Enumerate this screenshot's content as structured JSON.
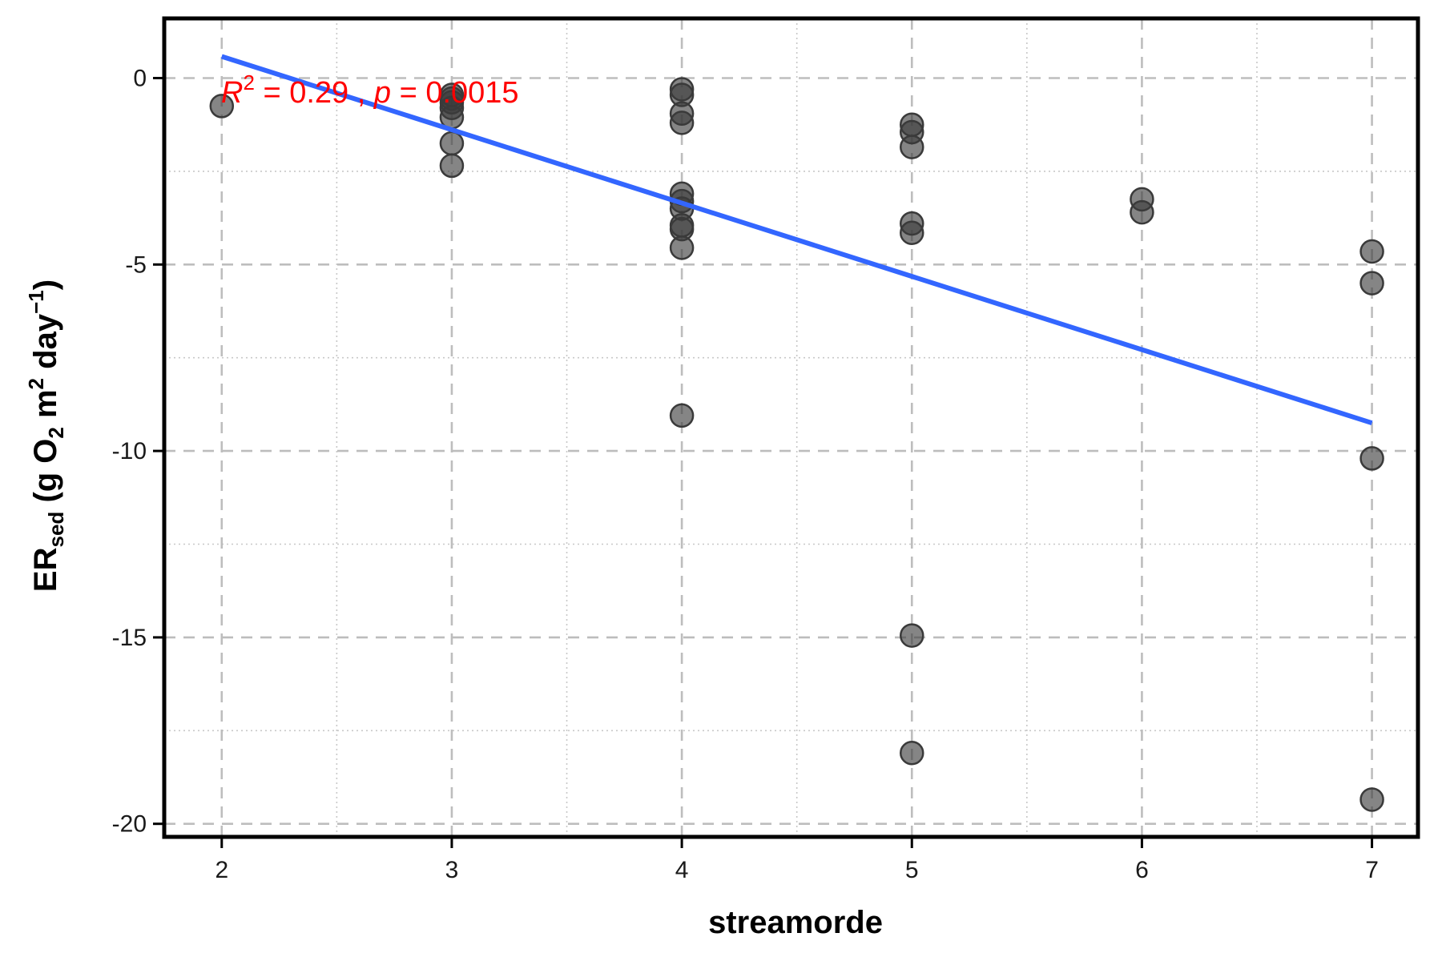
{
  "chart_data": {
    "type": "scatter",
    "title": "",
    "xlabel": "streamorde",
    "ylabel": {
      "main": "ER",
      "sub": "sed",
      "unit_prefix": " (g O",
      "unit_o2_sub": "2",
      "unit_m": " m",
      "unit_m_sup": "2",
      "unit_day": " day",
      "unit_day_sup": "−1",
      "unit_close": ")"
    },
    "xlim": [
      1.75,
      7.2
    ],
    "ylim": [
      -20.35,
      1.6
    ],
    "x_major_ticks": [
      2,
      3,
      4,
      5,
      6,
      7
    ],
    "x_minor_ticks": [
      2.5,
      3.5,
      4.5,
      5.5,
      6.5
    ],
    "y_major_ticks": [
      0,
      -5,
      -10,
      -15,
      -20
    ],
    "y_minor_ticks": [
      -2.5,
      -7.5,
      -12.5,
      -17.5
    ],
    "x_tick_labels": [
      "2",
      "3",
      "4",
      "5",
      "6",
      "7"
    ],
    "y_tick_labels": [
      "0",
      "-5",
      "-10",
      "-15",
      "-20"
    ],
    "grid": true,
    "point_color": "#3a3a3a",
    "line_color": "#3366ff",
    "annotation_color": "#ff0000",
    "points": [
      {
        "x": 2,
        "y": -0.75
      },
      {
        "x": 3,
        "y": -0.45
      },
      {
        "x": 3,
        "y": -0.55
      },
      {
        "x": 3,
        "y": -0.65
      },
      {
        "x": 3,
        "y": -0.8
      },
      {
        "x": 3,
        "y": -1.05
      },
      {
        "x": 3,
        "y": -1.75
      },
      {
        "x": 3,
        "y": -2.35
      },
      {
        "x": 4,
        "y": -0.3
      },
      {
        "x": 4,
        "y": -0.45
      },
      {
        "x": 4,
        "y": -0.95
      },
      {
        "x": 4,
        "y": -1.2
      },
      {
        "x": 4,
        "y": -3.1
      },
      {
        "x": 4,
        "y": -3.3
      },
      {
        "x": 4,
        "y": -3.5
      },
      {
        "x": 4,
        "y": -3.95
      },
      {
        "x": 4,
        "y": -4.05
      },
      {
        "x": 4,
        "y": -4.55
      },
      {
        "x": 4,
        "y": -9.05
      },
      {
        "x": 5,
        "y": -1.25
      },
      {
        "x": 5,
        "y": -1.45
      },
      {
        "x": 5,
        "y": -1.85
      },
      {
        "x": 5,
        "y": -3.9
      },
      {
        "x": 5,
        "y": -4.15
      },
      {
        "x": 5,
        "y": -14.95
      },
      {
        "x": 5,
        "y": -18.1
      },
      {
        "x": 6,
        "y": -3.25
      },
      {
        "x": 6,
        "y": -3.6
      },
      {
        "x": 7,
        "y": -4.65
      },
      {
        "x": 7,
        "y": -5.5
      },
      {
        "x": 7,
        "y": -10.2
      },
      {
        "x": 7,
        "y": -19.35
      }
    ],
    "regression_line": {
      "x": [
        2,
        7
      ],
      "y": [
        0.58,
        -9.25
      ]
    },
    "annotation": {
      "r_symbol": "R",
      "r_sup": "2",
      "r_value_text": " = 0.29 , ",
      "p_symbol": "p",
      "p_value_text": " = 0.0015"
    }
  }
}
